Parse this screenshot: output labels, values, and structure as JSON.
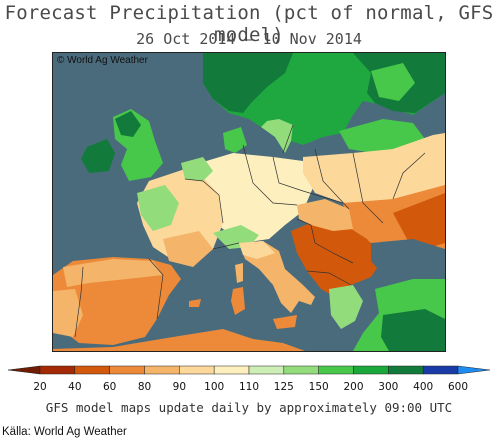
{
  "title": "Forecast Precipitation (pct of normal, GFS model)",
  "subtitle": "26 Oct 2014 – 10 Nov 2014",
  "copyright": "© World Ag Weather",
  "legend": {
    "ticks": [
      "20",
      "40",
      "60",
      "80",
      "90",
      "100",
      "110",
      "125",
      "150",
      "200",
      "300",
      "400",
      "600"
    ],
    "colors": [
      "#a42a05",
      "#d2580c",
      "#ec8a3a",
      "#f4b469",
      "#fcd89a",
      "#fdf0be",
      "#cdeeb4",
      "#93dc7c",
      "#47c84a",
      "#1aa83a",
      "#127a3a",
      "#1a3aa8",
      "#1a64e6",
      "#4a9af7"
    ],
    "end_colors": {
      "low": "#6e1c04",
      "high": "#1f8cf4"
    }
  },
  "footnote": "GFS model maps update daily by approximately 09:00 UTC",
  "source": "Källa: World Ag Weather",
  "map_colors": {
    "sea": "#4a6b7c",
    "deep_green": "#127a3a",
    "green": "#1fa83f",
    "light_green": "#47c84a",
    "pale_green": "#93dc7c",
    "pale_yellow": "#fdf0be",
    "yellow": "#fcd89a",
    "tan": "#f4b469",
    "orange": "#ec8a3a",
    "dark_orange": "#d2580c",
    "border": "#333333"
  }
}
